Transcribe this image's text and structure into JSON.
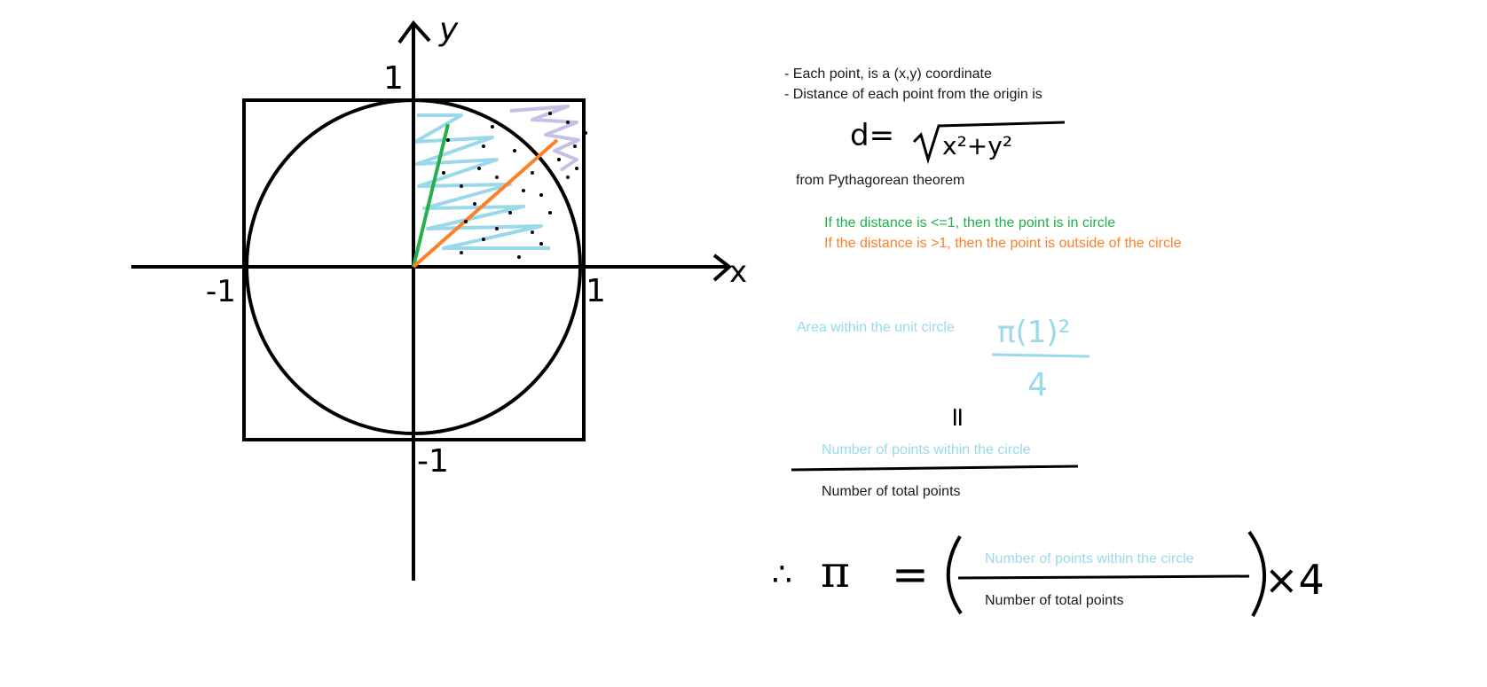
{
  "diagram": {
    "axis_labels": {
      "x": "x",
      "y": "y"
    },
    "tick_labels": {
      "y_top": "1",
      "y_bottom": "-1",
      "x_left": "-1",
      "x_right": "1"
    }
  },
  "notes": {
    "line1": "- Each point, is a (x,y) coordinate",
    "line2": "- Distance of each point from the origin is",
    "formula_lhs": "d=",
    "formula_rhs": "x²+y²",
    "pythagorean": "from Pythagorean theorem",
    "inside_rule": "If the distance is <=1, then the point is in circle",
    "outside_rule": "If the distance is >1, then the point is outside of the circle",
    "area_label": "Area within the unit circle",
    "area_numerator": "π(1)²",
    "area_denominator": "4",
    "equals": "=",
    "ratio_numerator": "Number of points within the circle",
    "ratio_denominator": "Number of total points",
    "therefore": "∴",
    "pi": "π",
    "final_equals": "=",
    "final_numerator": "Number of points within the circle",
    "final_denominator": "Number of total points",
    "times_four": "×4"
  },
  "colors": {
    "ink": "#000000",
    "inside": "#22b14c",
    "outside": "#ff7f27",
    "inside_fill": "#99d9ea",
    "outside_fill": "#c8bfe7"
  }
}
